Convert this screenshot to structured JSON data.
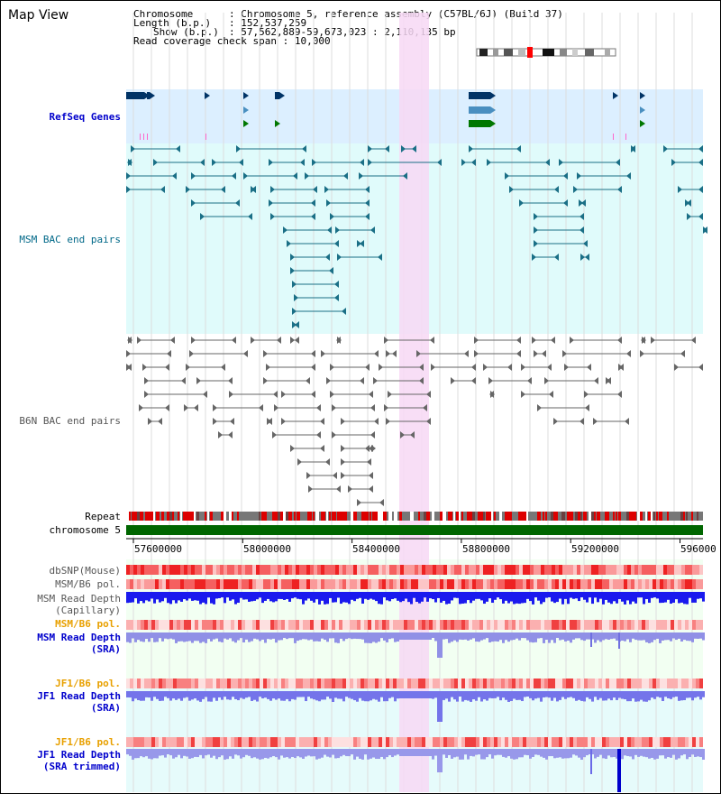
{
  "title": "Map View",
  "info": {
    "rows": [
      {
        "key": "Chromosome",
        "value": "Chromosome 5, reference assembly (C57BL/6J) (Build 37)"
      },
      {
        "key": "Length (b.p.)",
        "value": "152,537,259"
      },
      {
        "key": "Show (b.p.)",
        "value": "57,562,889-59,673,023 : 2,110,135 bp"
      },
      {
        "key": "Read coverage check span",
        "value": "10,000"
      }
    ]
  },
  "tracks": {
    "refseq": "RefSeq Genes",
    "msm_bac": "MSM BAC end pairs",
    "b6n_bac": "B6N BAC end pairs",
    "repeat": "Repeat",
    "chromosome": "chromosome 5",
    "dbsnp": "dbSNP(Mouse)",
    "msm_b6_pol_1": "MSM/B6 pol.",
    "msm_read_depth_cap_1": "MSM Read Depth",
    "msm_read_depth_cap_2": "(Capillary)",
    "msm_b6_pol_2": "MSM/B6 pol.",
    "msm_read_depth_sra_1": "MSM Read Depth",
    "msm_read_depth_sra_2": "(SRA)",
    "jf1_b6_pol_1": "JF1/B6 pol.",
    "jf1_read_depth_sra_1": "JF1 Read Depth",
    "jf1_read_depth_sra_2": "(SRA)",
    "jf1_b6_pol_2": "JF1/B6 pol.",
    "jf1_read_depth_trim_1": "JF1 Read Depth",
    "jf1_read_depth_trim_2": "(SRA trimmed)"
  },
  "axis": {
    "ticks": [
      "57600000",
      "58000000",
      "58400000",
      "58800000",
      "59200000",
      "596000"
    ]
  },
  "colors": {
    "refseq_bg": "#dcefff",
    "msm_bg": "#e0fbfb",
    "b6n_bg": "#ffffff",
    "highlight": "#f7d8f5",
    "gene_dark": "#003366",
    "gene_mid": "#4a8fc0",
    "gene_green": "#007700",
    "chromosome_bar": "#006600",
    "msm_pair": "#1a6f86",
    "b6n_pair": "#666666",
    "depth_blue": "#0000ee",
    "depth_light": "#8080ee"
  }
}
